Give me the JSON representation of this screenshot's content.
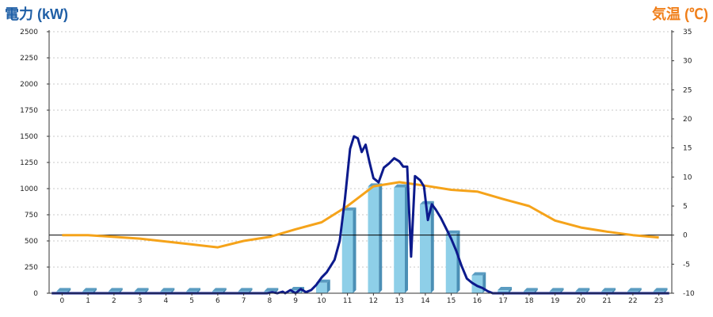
{
  "chart_data": {
    "type": "bar+line",
    "left_axis": {
      "label": "電力 (kW)",
      "min": 0,
      "max": 2500,
      "ticks": [
        0,
        250,
        500,
        750,
        1000,
        1250,
        1500,
        1750,
        2000,
        2250,
        2500
      ]
    },
    "right_axis": {
      "label": "気温 (℃)",
      "min": -10,
      "max": 35,
      "ticks": [
        -10,
        -5,
        0,
        5,
        10,
        15,
        20,
        25,
        30,
        35
      ]
    },
    "categories": [
      "0",
      "1",
      "2",
      "3",
      "4",
      "5",
      "6",
      "7",
      "8",
      "9",
      "10",
      "11",
      "12",
      "13",
      "14",
      "15",
      "16",
      "17",
      "18",
      "19",
      "20",
      "21",
      "22",
      "23"
    ],
    "bars": {
      "axis": "left",
      "color": "#8ecfe8",
      "values": [
        20,
        20,
        20,
        20,
        20,
        20,
        20,
        20,
        20,
        30,
        100,
        790,
        1020,
        1010,
        850,
        570,
        170,
        30,
        20,
        20,
        20,
        20,
        20,
        20
      ]
    },
    "power_line": {
      "axis": "left",
      "color": "#0c1a8c",
      "points": [
        [
          -0.4,
          0
        ],
        [
          7.9,
          0
        ],
        [
          8.1,
          10
        ],
        [
          8.3,
          0
        ],
        [
          8.5,
          15
        ],
        [
          8.6,
          0
        ],
        [
          8.8,
          30
        ],
        [
          9.0,
          0
        ],
        [
          9.2,
          40
        ],
        [
          9.4,
          10
        ],
        [
          9.6,
          30
        ],
        [
          9.8,
          80
        ],
        [
          10.0,
          150
        ],
        [
          10.2,
          200
        ],
        [
          10.5,
          320
        ],
        [
          10.7,
          500
        ],
        [
          10.9,
          900
        ],
        [
          11.1,
          1380
        ],
        [
          11.25,
          1500
        ],
        [
          11.4,
          1480
        ],
        [
          11.55,
          1350
        ],
        [
          11.7,
          1420
        ],
        [
          11.85,
          1250
        ],
        [
          12.0,
          1100
        ],
        [
          12.2,
          1060
        ],
        [
          12.4,
          1200
        ],
        [
          12.6,
          1240
        ],
        [
          12.8,
          1290
        ],
        [
          13.0,
          1260
        ],
        [
          13.15,
          1210
        ],
        [
          13.3,
          1210
        ],
        [
          13.45,
          350
        ],
        [
          13.6,
          1120
        ],
        [
          13.8,
          1080
        ],
        [
          13.95,
          1020
        ],
        [
          14.1,
          700
        ],
        [
          14.25,
          850
        ],
        [
          14.4,
          800
        ],
        [
          14.6,
          720
        ],
        [
          14.8,
          620
        ],
        [
          15.0,
          520
        ],
        [
          15.2,
          400
        ],
        [
          15.4,
          260
        ],
        [
          15.6,
          140
        ],
        [
          15.8,
          100
        ],
        [
          16.0,
          70
        ],
        [
          16.2,
          50
        ],
        [
          16.4,
          20
        ],
        [
          16.6,
          0
        ],
        [
          23.4,
          0
        ]
      ]
    },
    "temperature_line": {
      "axis": "right",
      "color": "#f5a31a",
      "points": [
        [
          0,
          0
        ],
        [
          1,
          0
        ],
        [
          2,
          -0.3
        ],
        [
          3,
          -0.6
        ],
        [
          4,
          -1.1
        ],
        [
          5,
          -1.6
        ],
        [
          6,
          -2.1
        ],
        [
          7,
          -1.0
        ],
        [
          8,
          -0.3
        ],
        [
          9,
          1.0
        ],
        [
          10,
          2.2
        ],
        [
          11,
          5.0
        ],
        [
          12,
          8.4
        ],
        [
          13,
          9.1
        ],
        [
          14,
          8.5
        ],
        [
          15,
          7.8
        ],
        [
          16,
          7.5
        ],
        [
          17,
          6.2
        ],
        [
          18,
          5.0
        ],
        [
          19,
          2.5
        ],
        [
          20,
          1.3
        ],
        [
          21,
          0.6
        ],
        [
          22,
          0.0
        ],
        [
          23,
          -0.4
        ]
      ]
    },
    "grid": true
  }
}
